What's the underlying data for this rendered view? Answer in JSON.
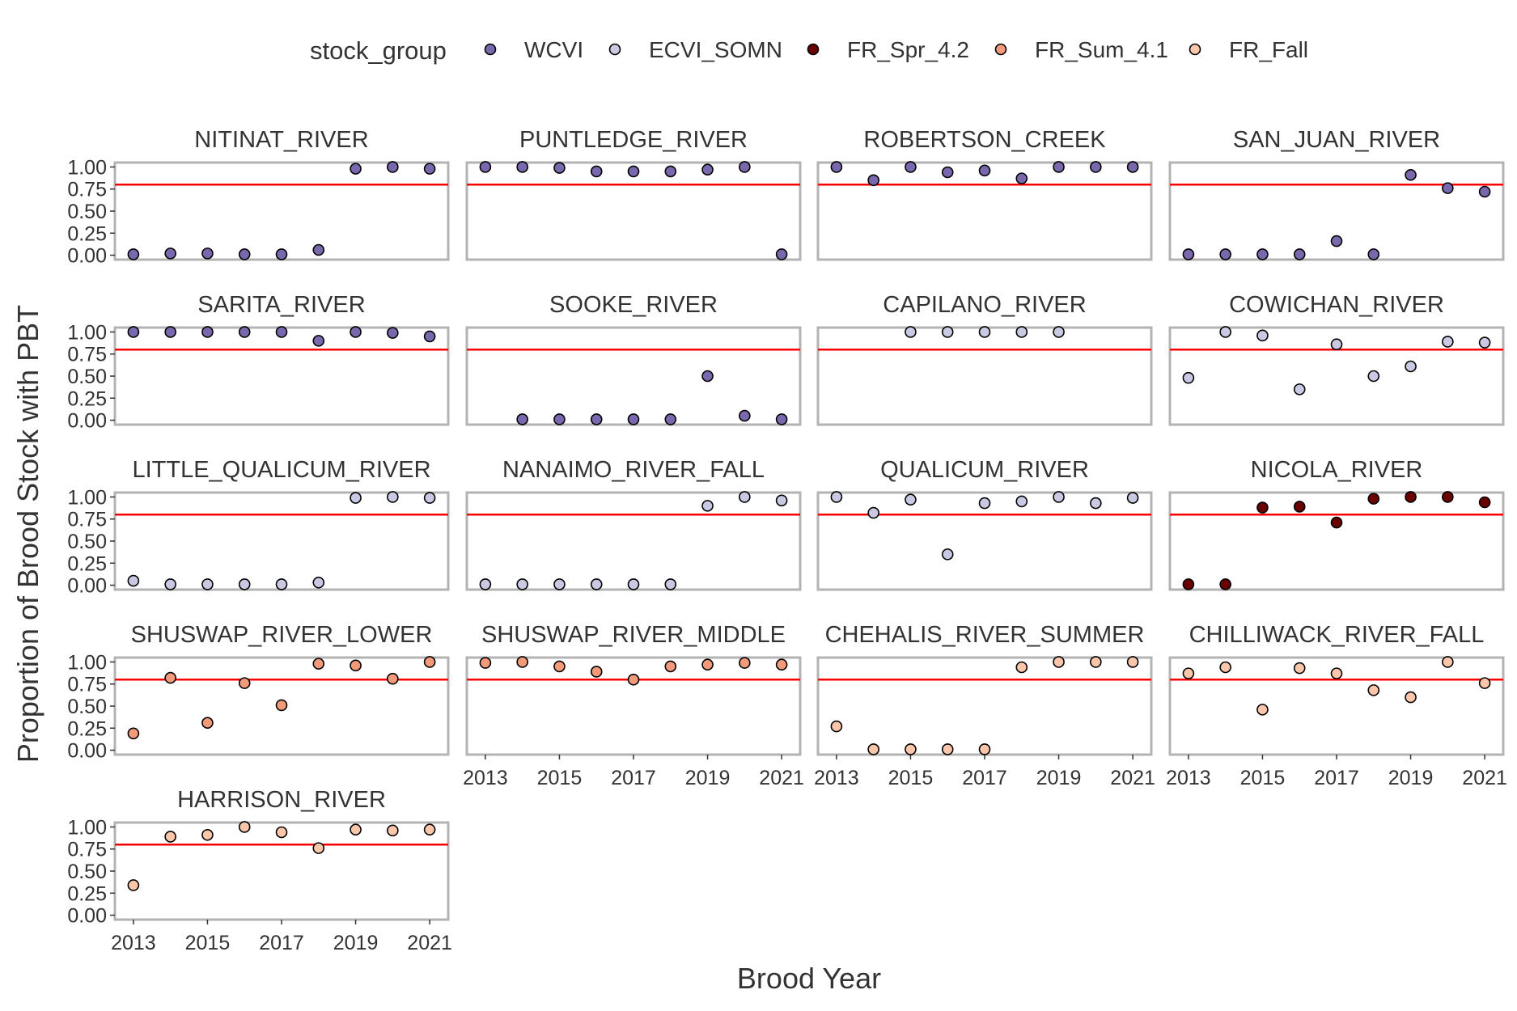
{
  "chart_data": {
    "type": "scatter",
    "xlabel": "Brood Year",
    "ylabel": "Proportion of Brood Stock with PBT",
    "xlim": [
      2012.5,
      2021.5
    ],
    "ylim": [
      -0.05,
      1.05
    ],
    "x_ticks": [
      "2013",
      "2015",
      "2017",
      "2019",
      "2021"
    ],
    "y_ticks": [
      "0.00",
      "0.25",
      "0.50",
      "0.75",
      "1.00"
    ],
    "threshold": 0.8,
    "threshold_color": "#ff0000",
    "legend": {
      "title": "stock_group",
      "position": "top",
      "items": [
        {
          "label": "WCVI",
          "color": "#7a68ae"
        },
        {
          "label": "ECVI_SOMN",
          "color": "#c9c9e3"
        },
        {
          "label": "FR_Spr_4.2",
          "color": "#6b0000"
        },
        {
          "label": "FR_Sum_4.1",
          "color": "#f29a7a"
        },
        {
          "label": "FR_Fall",
          "color": "#fbc6a9"
        }
      ]
    },
    "panels": [
      {
        "title": "NITINAT_RIVER",
        "group": "WCVI",
        "points": [
          [
            2013,
            0.01
          ],
          [
            2014,
            0.02
          ],
          [
            2015,
            0.02
          ],
          [
            2016,
            0.01
          ],
          [
            2017,
            0.01
          ],
          [
            2018,
            0.06
          ],
          [
            2019,
            0.98
          ],
          [
            2020,
            1.0
          ],
          [
            2021,
            0.98
          ]
        ]
      },
      {
        "title": "PUNTLEDGE_RIVER",
        "group": "WCVI",
        "points": [
          [
            2013,
            1.0
          ],
          [
            2014,
            1.0
          ],
          [
            2015,
            0.99
          ],
          [
            2016,
            0.95
          ],
          [
            2017,
            0.95
          ],
          [
            2018,
            0.95
          ],
          [
            2019,
            0.97
          ],
          [
            2020,
            1.0
          ],
          [
            2021,
            0.01
          ]
        ]
      },
      {
        "title": "ROBERTSON_CREEK",
        "group": "WCVI",
        "points": [
          [
            2013,
            1.0
          ],
          [
            2014,
            0.85
          ],
          [
            2015,
            1.0
          ],
          [
            2016,
            0.94
          ],
          [
            2017,
            0.96
          ],
          [
            2018,
            0.87
          ],
          [
            2019,
            1.0
          ],
          [
            2020,
            1.0
          ],
          [
            2021,
            1.0
          ]
        ]
      },
      {
        "title": "SAN_JUAN_RIVER",
        "group": "WCVI",
        "points": [
          [
            2013,
            0.01
          ],
          [
            2014,
            0.01
          ],
          [
            2015,
            0.01
          ],
          [
            2016,
            0.01
          ],
          [
            2017,
            0.16
          ],
          [
            2018,
            0.01
          ],
          [
            2019,
            0.91
          ],
          [
            2020,
            0.76
          ],
          [
            2021,
            0.72
          ]
        ]
      },
      {
        "title": "SARITA_RIVER",
        "group": "WCVI",
        "points": [
          [
            2013,
            1.0
          ],
          [
            2014,
            1.0
          ],
          [
            2015,
            1.0
          ],
          [
            2016,
            1.0
          ],
          [
            2017,
            1.0
          ],
          [
            2018,
            0.9
          ],
          [
            2019,
            1.0
          ],
          [
            2020,
            0.99
          ],
          [
            2021,
            0.95
          ]
        ]
      },
      {
        "title": "SOOKE_RIVER",
        "group": "WCVI",
        "points": [
          [
            2014,
            0.01
          ],
          [
            2015,
            0.01
          ],
          [
            2016,
            0.01
          ],
          [
            2017,
            0.01
          ],
          [
            2018,
            0.01
          ],
          [
            2019,
            0.5
          ],
          [
            2020,
            0.05
          ],
          [
            2021,
            0.01
          ]
        ]
      },
      {
        "title": "CAPILANO_RIVER",
        "group": "ECVI_SOMN",
        "points": [
          [
            2015,
            1.0
          ],
          [
            2016,
            1.0
          ],
          [
            2017,
            1.0
          ],
          [
            2018,
            1.0
          ],
          [
            2019,
            1.0
          ]
        ]
      },
      {
        "title": "COWICHAN_RIVER",
        "group": "ECVI_SOMN",
        "points": [
          [
            2013,
            0.48
          ],
          [
            2014,
            1.0
          ],
          [
            2015,
            0.96
          ],
          [
            2016,
            0.35
          ],
          [
            2017,
            0.86
          ],
          [
            2018,
            0.5
          ],
          [
            2019,
            0.61
          ],
          [
            2020,
            0.89
          ],
          [
            2021,
            0.88
          ]
        ]
      },
      {
        "title": "LITTLE_QUALICUM_RIVER",
        "group": "ECVI_SOMN",
        "points": [
          [
            2013,
            0.05
          ],
          [
            2014,
            0.01
          ],
          [
            2015,
            0.01
          ],
          [
            2016,
            0.01
          ],
          [
            2017,
            0.01
          ],
          [
            2018,
            0.03
          ],
          [
            2019,
            0.99
          ],
          [
            2020,
            1.0
          ],
          [
            2021,
            0.99
          ]
        ]
      },
      {
        "title": "NANAIMO_RIVER_FALL",
        "group": "ECVI_SOMN",
        "points": [
          [
            2013,
            0.01
          ],
          [
            2014,
            0.01
          ],
          [
            2015,
            0.01
          ],
          [
            2016,
            0.01
          ],
          [
            2017,
            0.01
          ],
          [
            2018,
            0.01
          ],
          [
            2019,
            0.9
          ],
          [
            2020,
            1.0
          ],
          [
            2021,
            0.96
          ]
        ]
      },
      {
        "title": "QUALICUM_RIVER",
        "group": "ECVI_SOMN",
        "points": [
          [
            2013,
            1.0
          ],
          [
            2014,
            0.82
          ],
          [
            2015,
            0.97
          ],
          [
            2016,
            0.35
          ],
          [
            2017,
            0.93
          ],
          [
            2018,
            0.95
          ],
          [
            2019,
            1.0
          ],
          [
            2020,
            0.93
          ],
          [
            2021,
            0.99
          ]
        ]
      },
      {
        "title": "NICOLA_RIVER",
        "group": "FR_Spr_4.2",
        "points": [
          [
            2013,
            0.01
          ],
          [
            2014,
            0.01
          ],
          [
            2015,
            0.88
          ],
          [
            2016,
            0.89
          ],
          [
            2017,
            0.71
          ],
          [
            2018,
            0.98
          ],
          [
            2019,
            1.0
          ],
          [
            2020,
            1.0
          ],
          [
            2021,
            0.94
          ]
        ]
      },
      {
        "title": "SHUSWAP_RIVER_LOWER",
        "group": "FR_Sum_4.1",
        "points": [
          [
            2013,
            0.19
          ],
          [
            2014,
            0.82
          ],
          [
            2015,
            0.31
          ],
          [
            2016,
            0.76
          ],
          [
            2017,
            0.51
          ],
          [
            2018,
            0.98
          ],
          [
            2019,
            0.96
          ],
          [
            2020,
            0.81
          ],
          [
            2021,
            1.0
          ]
        ]
      },
      {
        "title": "SHUSWAP_RIVER_MIDDLE",
        "group": "FR_Sum_4.1",
        "points": [
          [
            2013,
            0.99
          ],
          [
            2014,
            1.0
          ],
          [
            2015,
            0.95
          ],
          [
            2016,
            0.89
          ],
          [
            2017,
            0.8
          ],
          [
            2018,
            0.95
          ],
          [
            2019,
            0.97
          ],
          [
            2020,
            0.99
          ],
          [
            2021,
            0.97
          ]
        ]
      },
      {
        "title": "CHEHALIS_RIVER_SUMMER",
        "group": "FR_Fall",
        "points": [
          [
            2013,
            0.27
          ],
          [
            2014,
            0.01
          ],
          [
            2015,
            0.01
          ],
          [
            2016,
            0.01
          ],
          [
            2017,
            0.01
          ],
          [
            2018,
            0.94
          ],
          [
            2019,
            1.0
          ],
          [
            2020,
            1.0
          ],
          [
            2021,
            1.0
          ]
        ]
      },
      {
        "title": "CHILLIWACK_RIVER_FALL",
        "group": "FR_Fall",
        "points": [
          [
            2013,
            0.87
          ],
          [
            2014,
            0.94
          ],
          [
            2015,
            0.46
          ],
          [
            2016,
            0.93
          ],
          [
            2017,
            0.87
          ],
          [
            2018,
            0.68
          ],
          [
            2019,
            0.6
          ],
          [
            2020,
            1.0
          ],
          [
            2021,
            0.76
          ]
        ]
      },
      {
        "title": "HARRISON_RIVER",
        "group": "FR_Fall",
        "points": [
          [
            2013,
            0.34
          ],
          [
            2014,
            0.89
          ],
          [
            2015,
            0.91
          ],
          [
            2016,
            1.0
          ],
          [
            2017,
            0.94
          ],
          [
            2018,
            0.76
          ],
          [
            2019,
            0.97
          ],
          [
            2020,
            0.96
          ],
          [
            2021,
            0.97
          ]
        ]
      }
    ]
  }
}
